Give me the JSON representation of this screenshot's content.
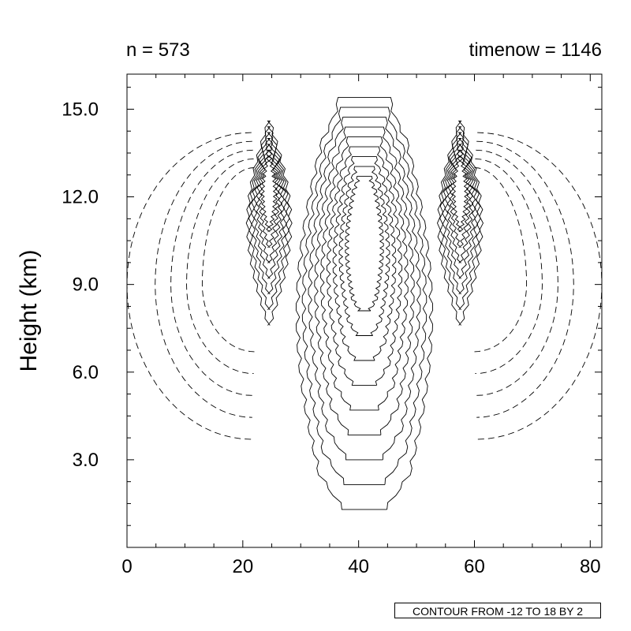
{
  "chart_data": {
    "type": "contour",
    "title": "",
    "left_string": "n = 573",
    "right_string": "timenow = 1146",
    "xlabel": "",
    "ylabel": "Height (km)",
    "xlim": [
      0,
      82
    ],
    "ylim": [
      0,
      16.2
    ],
    "x_ticks": [
      0,
      20,
      40,
      60,
      80
    ],
    "x_tick_labels": [
      "0",
      "20",
      "40",
      "60",
      "80"
    ],
    "y_ticks": [
      3.0,
      6.0,
      9.0,
      12.0,
      15.0
    ],
    "y_tick_labels": [
      "3.0",
      "6.0",
      "9.0",
      "12.0",
      "15.0"
    ],
    "contour_info": "CONTOUR FROM -12 TO 18 BY 2",
    "contour_min": -12,
    "contour_max": 18,
    "contour_interval": 2,
    "negative_line_style": "dashed",
    "positive_line_style": "solid"
  }
}
